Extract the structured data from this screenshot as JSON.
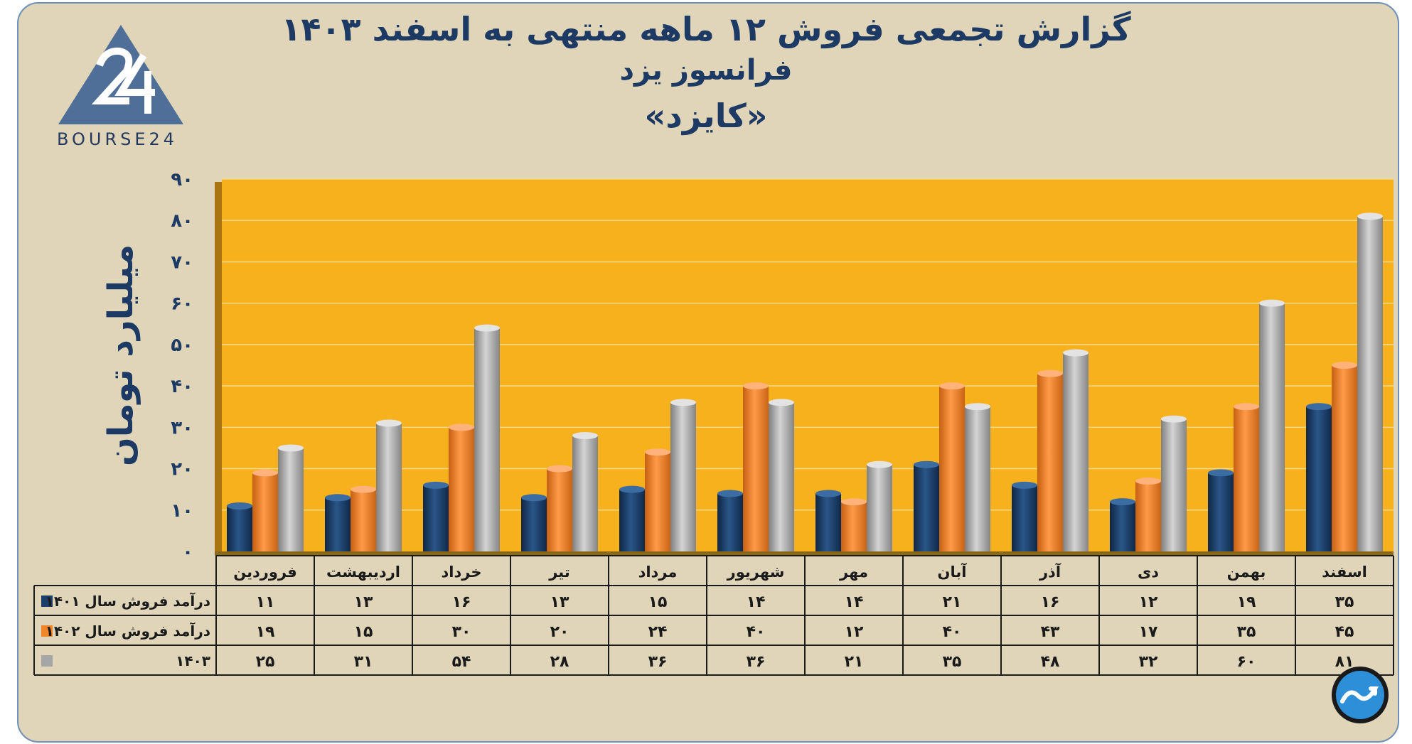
{
  "header": {
    "title_line1": "گزارش تجمعی فروش ۱۲ ماهه منتهی به اسفند ۱۴۰۳",
    "title_line2": "فرانسوز یزد",
    "title_line3": "«کایزد»"
  },
  "logo": {
    "text": "BOURSE24",
    "mark": "24"
  },
  "colors": {
    "background": "#e0d5b8",
    "plot": "#f7b11d",
    "s1401": "#1c3f6a",
    "s1402": "#f08529",
    "s1403": "#a6a6a6",
    "title": "#1c3a63"
  },
  "chart_data": {
    "type": "bar",
    "title": "گزارش تجمعی فروش ۱۲ ماهه منتهی به اسفند ۱۴۰۳",
    "subtitle": "فرانسوز یزد «کایزد»",
    "xlabel": "",
    "ylabel": "میلیارد تومان",
    "ylim": [
      0,
      90
    ],
    "yticks": [
      0,
      10,
      20,
      30,
      40,
      50,
      60,
      70,
      80,
      90
    ],
    "ytick_labels": [
      "۰",
      "۱۰",
      "۲۰",
      "۳۰",
      "۴۰",
      "۵۰",
      "۶۰",
      "۷۰",
      "۸۰",
      "۹۰"
    ],
    "categories": [
      "فروردین",
      "اردیبهشت",
      "خرداد",
      "تیر",
      "مرداد",
      "شهریور",
      "مهر",
      "آبان",
      "آذر",
      "دی",
      "بهمن",
      "اسفند"
    ],
    "series": [
      {
        "name": "درآمد فروش سال ۱۴۰۱",
        "color": "#1c3f6a",
        "values": [
          11,
          13,
          16,
          13,
          15,
          14,
          14,
          21,
          16,
          12,
          19,
          35
        ],
        "labels": [
          "۱۱",
          "۱۳",
          "۱۶",
          "۱۳",
          "۱۵",
          "۱۴",
          "۱۴",
          "۲۱",
          "۱۶",
          "۱۲",
          "۱۹",
          "۳۵"
        ]
      },
      {
        "name": "درآمد فروش سال ۱۴۰۲",
        "color": "#f08529",
        "values": [
          19,
          15,
          30,
          20,
          24,
          40,
          12,
          40,
          43,
          17,
          35,
          45
        ],
        "labels": [
          "۱۹",
          "۱۵",
          "۳۰",
          "۲۰",
          "۲۴",
          "۴۰",
          "۱۲",
          "۴۰",
          "۴۳",
          "۱۷",
          "۳۵",
          "۴۵"
        ]
      },
      {
        "name": "۱۴۰۳",
        "color": "#a6a6a6",
        "values": [
          25,
          31,
          54,
          28,
          36,
          36,
          21,
          35,
          48,
          32,
          60,
          81
        ],
        "labels": [
          "۲۵",
          "۳۱",
          "۵۴",
          "۲۸",
          "۳۶",
          "۳۶",
          "۲۱",
          "۳۵",
          "۴۸",
          "۳۲",
          "۶۰",
          "۸۱"
        ]
      }
    ],
    "grid": true,
    "legend": "table-left"
  }
}
